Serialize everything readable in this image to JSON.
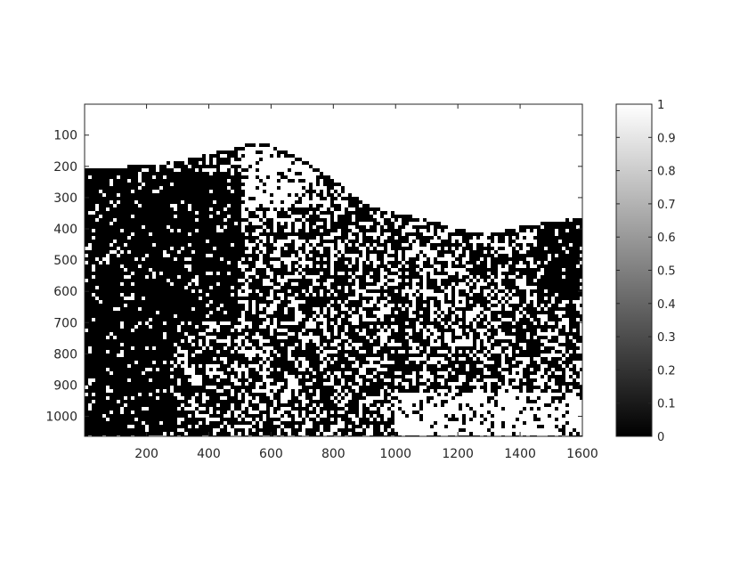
{
  "chart_data": {
    "type": "heatmap",
    "title": "",
    "xlabel": "",
    "ylabel": "",
    "colormap": "gray",
    "binarized": true,
    "image_width": 1600,
    "image_height": 1064,
    "xlim": [
      1,
      1600
    ],
    "ylim": [
      1,
      1064
    ],
    "y_direction": "reverse",
    "x_ticks": [
      "200",
      "400",
      "600",
      "800",
      "1000",
      "1200",
      "1400",
      "1600"
    ],
    "y_ticks": [
      "100",
      "200",
      "300",
      "400",
      "500",
      "600",
      "700",
      "800",
      "900",
      "1000"
    ],
    "colorbar": {
      "range": [
        0,
        1
      ],
      "ticks": [
        "0",
        "0.1",
        "0.2",
        "0.3",
        "0.4",
        "0.5",
        "0.6",
        "0.7",
        "0.8",
        "0.9",
        "1"
      ]
    },
    "ridge_profile": {
      "x": [
        1,
        150,
        300,
        400,
        480,
        560,
        640,
        720,
        800,
        900,
        1000,
        1100,
        1200,
        1300,
        1400,
        1500,
        1600
      ],
      "y": [
        205,
        200,
        185,
        160,
        140,
        120,
        150,
        190,
        240,
        320,
        350,
        370,
        400,
        420,
        390,
        380,
        360
      ]
    },
    "dense_dark_regions": [
      {
        "x": [
          1,
          500
        ],
        "y": [
          220,
          700
        ]
      },
      {
        "x": [
          1,
          300
        ],
        "y": [
          700,
          1064
        ]
      },
      {
        "x": [
          1450,
          1600
        ],
        "y": [
          380,
          620
        ]
      }
    ],
    "bright_regions": [
      {
        "x": [
          1000,
          1600
        ],
        "y": [
          930,
          1064
        ]
      },
      {
        "x": [
          520,
          750
        ],
        "y": [
          140,
          330
        ]
      }
    ]
  }
}
